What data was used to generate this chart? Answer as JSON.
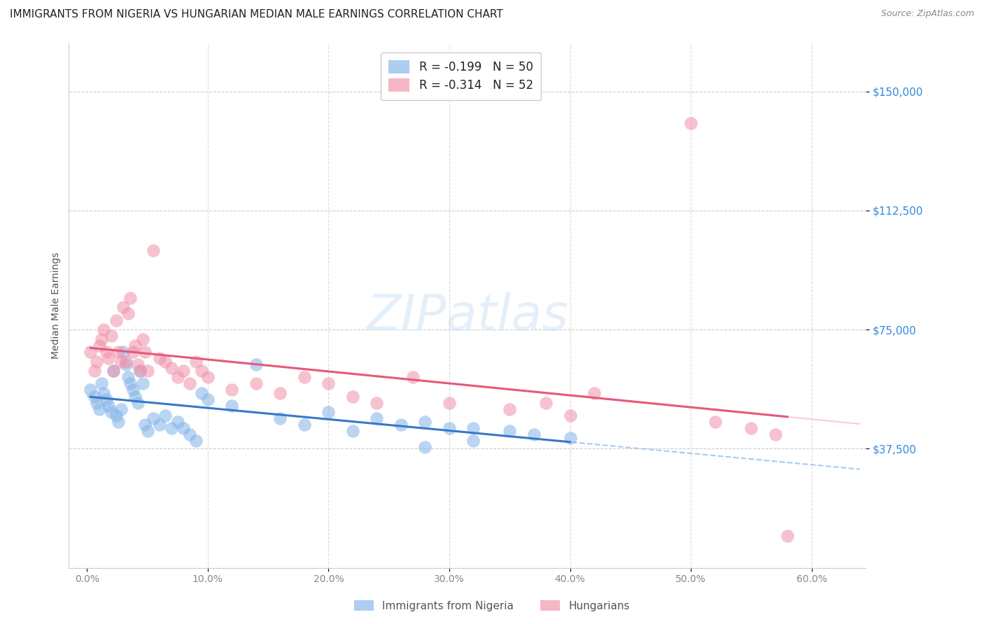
{
  "title": "IMMIGRANTS FROM NIGERIA VS HUNGARIAN MEDIAN MALE EARNINGS CORRELATION CHART",
  "source": "Source: ZipAtlas.com",
  "ylabel": "Median Male Earnings",
  "ytick_labels": [
    "$150,000",
    "$112,500",
    "$75,000",
    "$37,500"
  ],
  "ytick_vals": [
    150000,
    112500,
    75000,
    37500
  ],
  "xtick_labels": [
    "0.0%",
    "10.0%",
    "20.0%",
    "30.0%",
    "40.0%",
    "50.0%",
    "60.0%"
  ],
  "xtick_vals": [
    0.0,
    0.1,
    0.2,
    0.3,
    0.4,
    0.5,
    0.6
  ],
  "ymin": 0,
  "ymax": 165000,
  "xmin": -0.015,
  "xmax": 0.645,
  "blue_color": "#82b4e8",
  "pink_color": "#f090a8",
  "blue_line_color": "#3878c8",
  "pink_line_color": "#e85878",
  "blue_dash_color": "#a0c4ec",
  "pink_dash_color": "#f0a0b8",
  "r_nigeria": -0.199,
  "n_nigeria": 50,
  "r_hungarian": -0.314,
  "n_hungarian": 52,
  "legend_label1": "Immigrants from Nigeria",
  "legend_label2": "Hungarians",
  "watermark": "ZIPatlas",
  "nigeria_points": [
    [
      0.003,
      56000
    ],
    [
      0.006,
      54000
    ],
    [
      0.008,
      52000
    ],
    [
      0.01,
      50000
    ],
    [
      0.012,
      58000
    ],
    [
      0.014,
      55000
    ],
    [
      0.016,
      53000
    ],
    [
      0.018,
      51000
    ],
    [
      0.02,
      49000
    ],
    [
      0.022,
      62000
    ],
    [
      0.024,
      48000
    ],
    [
      0.026,
      46000
    ],
    [
      0.028,
      50000
    ],
    [
      0.03,
      68000
    ],
    [
      0.032,
      64000
    ],
    [
      0.034,
      60000
    ],
    [
      0.036,
      58000
    ],
    [
      0.038,
      56000
    ],
    [
      0.04,
      54000
    ],
    [
      0.042,
      52000
    ],
    [
      0.044,
      62000
    ],
    [
      0.046,
      58000
    ],
    [
      0.048,
      45000
    ],
    [
      0.05,
      43000
    ],
    [
      0.055,
      47000
    ],
    [
      0.06,
      45000
    ],
    [
      0.065,
      48000
    ],
    [
      0.07,
      44000
    ],
    [
      0.075,
      46000
    ],
    [
      0.08,
      44000
    ],
    [
      0.085,
      42000
    ],
    [
      0.09,
      40000
    ],
    [
      0.095,
      55000
    ],
    [
      0.1,
      53000
    ],
    [
      0.12,
      51000
    ],
    [
      0.14,
      64000
    ],
    [
      0.16,
      47000
    ],
    [
      0.18,
      45000
    ],
    [
      0.2,
      49000
    ],
    [
      0.22,
      43000
    ],
    [
      0.24,
      47000
    ],
    [
      0.26,
      45000
    ],
    [
      0.28,
      46000
    ],
    [
      0.3,
      44000
    ],
    [
      0.32,
      44000
    ],
    [
      0.35,
      43000
    ],
    [
      0.37,
      42000
    ],
    [
      0.4,
      41000
    ],
    [
      0.32,
      40000
    ],
    [
      0.28,
      38000
    ]
  ],
  "hungarian_points": [
    [
      0.003,
      68000
    ],
    [
      0.006,
      62000
    ],
    [
      0.008,
      65000
    ],
    [
      0.01,
      70000
    ],
    [
      0.012,
      72000
    ],
    [
      0.014,
      75000
    ],
    [
      0.016,
      68000
    ],
    [
      0.018,
      66000
    ],
    [
      0.02,
      73000
    ],
    [
      0.022,
      62000
    ],
    [
      0.024,
      78000
    ],
    [
      0.026,
      68000
    ],
    [
      0.028,
      65000
    ],
    [
      0.03,
      82000
    ],
    [
      0.032,
      65000
    ],
    [
      0.034,
      80000
    ],
    [
      0.036,
      85000
    ],
    [
      0.038,
      68000
    ],
    [
      0.04,
      70000
    ],
    [
      0.042,
      64000
    ],
    [
      0.044,
      62000
    ],
    [
      0.046,
      72000
    ],
    [
      0.048,
      68000
    ],
    [
      0.05,
      62000
    ],
    [
      0.055,
      100000
    ],
    [
      0.06,
      66000
    ],
    [
      0.065,
      65000
    ],
    [
      0.07,
      63000
    ],
    [
      0.075,
      60000
    ],
    [
      0.08,
      62000
    ],
    [
      0.085,
      58000
    ],
    [
      0.09,
      65000
    ],
    [
      0.095,
      62000
    ],
    [
      0.1,
      60000
    ],
    [
      0.12,
      56000
    ],
    [
      0.14,
      58000
    ],
    [
      0.16,
      55000
    ],
    [
      0.18,
      60000
    ],
    [
      0.2,
      58000
    ],
    [
      0.22,
      54000
    ],
    [
      0.24,
      52000
    ],
    [
      0.27,
      60000
    ],
    [
      0.3,
      52000
    ],
    [
      0.35,
      50000
    ],
    [
      0.38,
      52000
    ],
    [
      0.4,
      48000
    ],
    [
      0.42,
      55000
    ],
    [
      0.5,
      140000
    ],
    [
      0.52,
      46000
    ],
    [
      0.55,
      44000
    ],
    [
      0.57,
      42000
    ],
    [
      0.58,
      10000
    ]
  ],
  "title_fontsize": 11,
  "source_fontsize": 9,
  "axis_label_fontsize": 10,
  "tick_fontsize": 10,
  "legend_fontsize": 12
}
